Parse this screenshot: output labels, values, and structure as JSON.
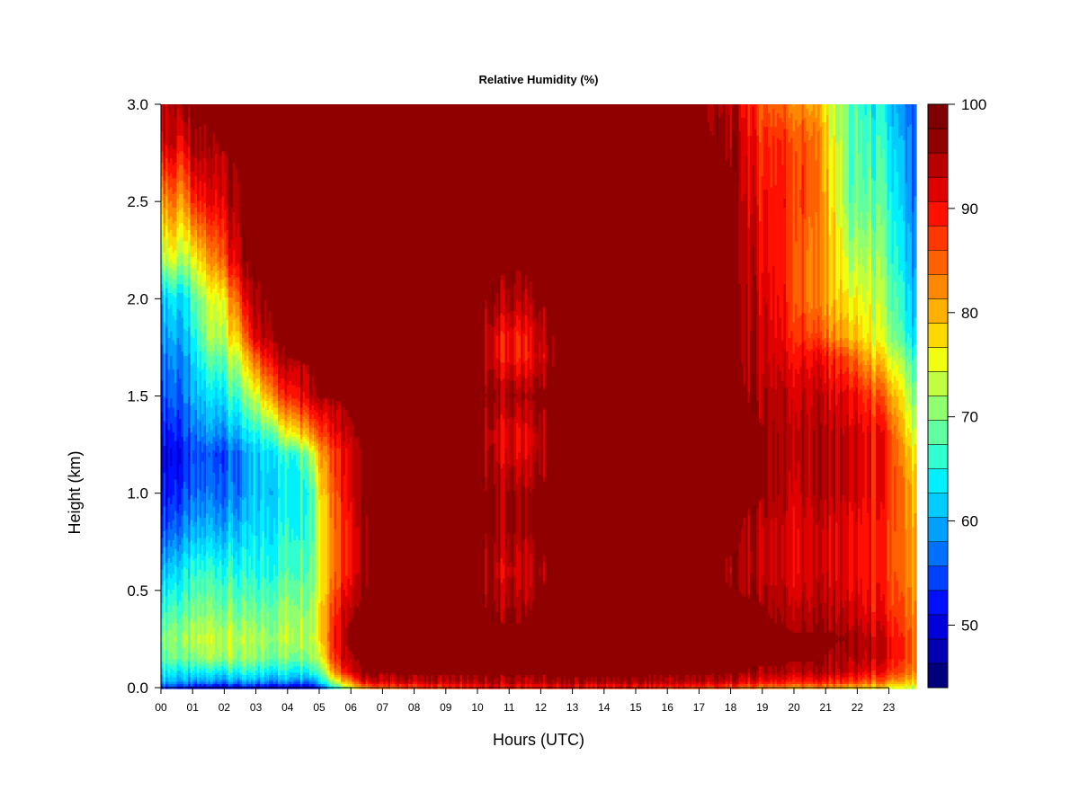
{
  "chart_data": {
    "type": "heatmap",
    "title": "Relative Humidity (%)",
    "xlabel": "Hours (UTC)",
    "ylabel": "Height (km)",
    "xlim": [
      0,
      23.85
    ],
    "ylim": [
      0.0,
      3.0
    ],
    "x_ticks": [
      "00",
      "01",
      "02",
      "03",
      "04",
      "05",
      "06",
      "07",
      "08",
      "09",
      "10",
      "11",
      "12",
      "13",
      "14",
      "15",
      "16",
      "17",
      "18",
      "19",
      "20",
      "21",
      "22",
      "23"
    ],
    "y_ticks": [
      "0.0",
      "0.5",
      "1.0",
      "1.5",
      "2.0",
      "2.5",
      "3.0"
    ],
    "colorbar": {
      "min": 44,
      "max": 100,
      "step": 2.5,
      "ticks": [
        "50",
        "60",
        "70",
        "80",
        "90",
        "100"
      ],
      "tick_values": [
        50,
        60,
        70,
        80,
        90,
        100
      ],
      "colors": [
        "#00007F",
        "#0000B0",
        "#0000DD",
        "#0010FF",
        "#0040FF",
        "#0070FF",
        "#00A0FF",
        "#00CCFF",
        "#00F0FF",
        "#30FFD0",
        "#60FFA0",
        "#90FF70",
        "#C0FF40",
        "#F0FF10",
        "#FFD800",
        "#FFB000",
        "#FF8800",
        "#FF6000",
        "#FF3800",
        "#FF1000",
        "#E00000",
        "#B80000",
        "#900000",
        "#7F0000"
      ]
    },
    "heights_km": [
      0.0,
      0.03,
      0.08,
      0.15,
      0.25,
      0.4,
      0.6,
      0.8,
      1.0,
      1.2,
      1.3,
      1.5,
      1.7,
      1.8,
      2.0,
      2.2,
      2.5,
      2.8,
      3.0
    ],
    "profiles": [
      {
        "hour": 0.0,
        "rh": [
          55,
          62,
          66,
          70,
          72,
          68,
          62,
          56,
          52,
          50,
          52,
          56,
          58,
          60,
          62,
          74,
          84,
          96,
          99
        ]
      },
      {
        "hour": 0.4,
        "rh": [
          55,
          62,
          66,
          72,
          74,
          70,
          64,
          58,
          54,
          52,
          54,
          58,
          60,
          62,
          66,
          78,
          88,
          98,
          99
        ]
      },
      {
        "hour": 0.7,
        "rh": [
          52,
          60,
          64,
          70,
          72,
          68,
          64,
          58,
          54,
          52,
          54,
          56,
          58,
          60,
          62,
          72,
          82,
          92,
          99
        ]
      },
      {
        "hour": 1.0,
        "rh": [
          50,
          58,
          64,
          70,
          74,
          70,
          66,
          60,
          56,
          54,
          56,
          60,
          62,
          64,
          68,
          76,
          90,
          99,
          100
        ]
      },
      {
        "hour": 1.5,
        "rh": [
          50,
          60,
          66,
          74,
          76,
          72,
          68,
          62,
          58,
          56,
          60,
          64,
          70,
          74,
          76,
          84,
          94,
          99,
          100
        ]
      },
      {
        "hour": 2.0,
        "rh": [
          50,
          60,
          66,
          74,
          76,
          72,
          68,
          62,
          58,
          56,
          60,
          66,
          72,
          76,
          80,
          90,
          97,
          100,
          100
        ]
      },
      {
        "hour": 2.6,
        "rh": [
          50,
          60,
          66,
          72,
          74,
          70,
          66,
          62,
          58,
          58,
          62,
          70,
          78,
          84,
          92,
          99,
          100,
          100,
          100
        ]
      },
      {
        "hour": 3.0,
        "rh": [
          50,
          60,
          66,
          72,
          74,
          70,
          66,
          64,
          62,
          62,
          66,
          76,
          88,
          96,
          99,
          100,
          100,
          100,
          100
        ]
      },
      {
        "hour": 3.6,
        "rh": [
          50,
          60,
          66,
          72,
          74,
          72,
          68,
          66,
          64,
          66,
          72,
          88,
          98,
          100,
          100,
          100,
          100,
          100,
          100
        ]
      },
      {
        "hour": 4.2,
        "rh": [
          50,
          60,
          66,
          72,
          76,
          74,
          70,
          68,
          66,
          68,
          80,
          94,
          100,
          100,
          100,
          100,
          100,
          100,
          100
        ]
      },
      {
        "hour": 4.8,
        "rh": [
          50,
          60,
          68,
          74,
          76,
          74,
          72,
          70,
          70,
          76,
          86,
          99,
          100,
          100,
          100,
          100,
          100,
          100,
          100
        ]
      },
      {
        "hour": 5.0,
        "rh": [
          56,
          64,
          70,
          76,
          80,
          80,
          78,
          78,
          80,
          84,
          90,
          100,
          100,
          100,
          100,
          100,
          100,
          100,
          100
        ]
      },
      {
        "hour": 5.4,
        "rh": [
          66,
          74,
          84,
          90,
          92,
          90,
          86,
          86,
          88,
          90,
          94,
          100,
          100,
          100,
          100,
          100,
          100,
          100,
          100
        ]
      },
      {
        "hour": 5.9,
        "rh": [
          76,
          86,
          96,
          99,
          100,
          99,
          94,
          94,
          96,
          96,
          99,
          100,
          100,
          100,
          100,
          100,
          100,
          100,
          100
        ]
      },
      {
        "hour": 6.4,
        "rh": [
          84,
          94,
          100,
          100,
          100,
          100,
          99,
          99,
          100,
          100,
          100,
          100,
          100,
          100,
          100,
          100,
          100,
          100,
          100
        ]
      },
      {
        "hour": 7.0,
        "rh": [
          88,
          97,
          100,
          100,
          100,
          100,
          100,
          100,
          100,
          100,
          100,
          100,
          100,
          100,
          100,
          100,
          100,
          100,
          100
        ]
      },
      {
        "hour": 8.5,
        "rh": [
          90,
          98,
          100,
          100,
          100,
          100,
          100,
          100,
          100,
          100,
          100,
          100,
          100,
          100,
          100,
          100,
          100,
          100,
          100
        ]
      },
      {
        "hour": 10.0,
        "rh": [
          92,
          98,
          100,
          100,
          100,
          100,
          100,
          100,
          100,
          100,
          100,
          100,
          100,
          100,
          100,
          100,
          100,
          100,
          100
        ]
      },
      {
        "hour": 10.6,
        "rh": [
          92,
          98,
          100,
          100,
          100,
          99,
          96,
          99,
          99,
          96,
          95,
          99,
          94,
          94,
          99,
          100,
          100,
          100,
          100
        ]
      },
      {
        "hour": 11.3,
        "rh": [
          92,
          98,
          100,
          100,
          100,
          99,
          96,
          99,
          99,
          95,
          94,
          99,
          92,
          92,
          98,
          100,
          100,
          100,
          100
        ]
      },
      {
        "hour": 12.0,
        "rh": [
          92,
          98,
          100,
          100,
          100,
          100,
          99,
          100,
          100,
          98,
          98,
          100,
          96,
          97,
          100,
          100,
          100,
          100,
          100
        ]
      },
      {
        "hour": 12.6,
        "rh": [
          93,
          99,
          100,
          100,
          100,
          100,
          100,
          100,
          100,
          100,
          100,
          100,
          100,
          100,
          100,
          100,
          100,
          100,
          100
        ]
      },
      {
        "hour": 15.0,
        "rh": [
          92,
          99,
          100,
          100,
          100,
          100,
          100,
          100,
          100,
          100,
          100,
          100,
          100,
          100,
          100,
          100,
          100,
          100,
          100
        ]
      },
      {
        "hour": 17.0,
        "rh": [
          90,
          98,
          100,
          100,
          100,
          100,
          100,
          100,
          100,
          100,
          100,
          100,
          100,
          100,
          100,
          100,
          100,
          100,
          100
        ]
      },
      {
        "hour": 18.2,
        "rh": [
          88,
          96,
          100,
          100,
          100,
          100,
          99,
          100,
          100,
          100,
          100,
          100,
          100,
          100,
          100,
          100,
          100,
          99,
          97
        ]
      },
      {
        "hour": 18.8,
        "rh": [
          86,
          95,
          99,
          100,
          100,
          100,
          98,
          98,
          100,
          100,
          100,
          99,
          98,
          98,
          97,
          96,
          94,
          92,
          90
        ]
      },
      {
        "hour": 19.5,
        "rh": [
          86,
          94,
          99,
          100,
          100,
          99,
          97,
          97,
          99,
          99,
          99,
          98,
          96,
          95,
          94,
          93,
          93,
          92,
          88
        ]
      },
      {
        "hour": 20.0,
        "rh": [
          84,
          93,
          98,
          100,
          100,
          98,
          95,
          95,
          97,
          98,
          98,
          97,
          94,
          92,
          90,
          90,
          91,
          90,
          86
        ]
      },
      {
        "hour": 20.6,
        "rh": [
          84,
          93,
          98,
          100,
          100,
          98,
          96,
          96,
          98,
          98,
          98,
          97,
          94,
          90,
          86,
          86,
          88,
          88,
          84
        ]
      },
      {
        "hour": 21.2,
        "rh": [
          84,
          92,
          98,
          99,
          100,
          98,
          96,
          96,
          98,
          98,
          98,
          96,
          92,
          86,
          82,
          82,
          80,
          78,
          76
        ]
      },
      {
        "hour": 21.8,
        "rh": [
          82,
          90,
          96,
          98,
          99,
          96,
          94,
          94,
          96,
          96,
          96,
          94,
          88,
          82,
          78,
          74,
          70,
          70,
          70
        ]
      },
      {
        "hour": 22.4,
        "rh": [
          80,
          88,
          94,
          97,
          97,
          94,
          92,
          92,
          94,
          94,
          94,
          90,
          82,
          78,
          76,
          74,
          70,
          68,
          66
        ]
      },
      {
        "hour": 22.9,
        "rh": [
          78,
          86,
          92,
          95,
          95,
          92,
          90,
          90,
          92,
          92,
          92,
          86,
          78,
          74,
          72,
          70,
          68,
          66,
          64
        ]
      },
      {
        "hour": 23.4,
        "rh": [
          76,
          82,
          88,
          90,
          90,
          88,
          86,
          86,
          86,
          84,
          82,
          78,
          72,
          68,
          66,
          64,
          62,
          60,
          58
        ]
      },
      {
        "hour": 23.85,
        "rh": [
          74,
          80,
          84,
          86,
          86,
          84,
          82,
          82,
          80,
          78,
          74,
          70,
          66,
          62,
          60,
          58,
          56,
          56,
          55
        ]
      }
    ]
  }
}
